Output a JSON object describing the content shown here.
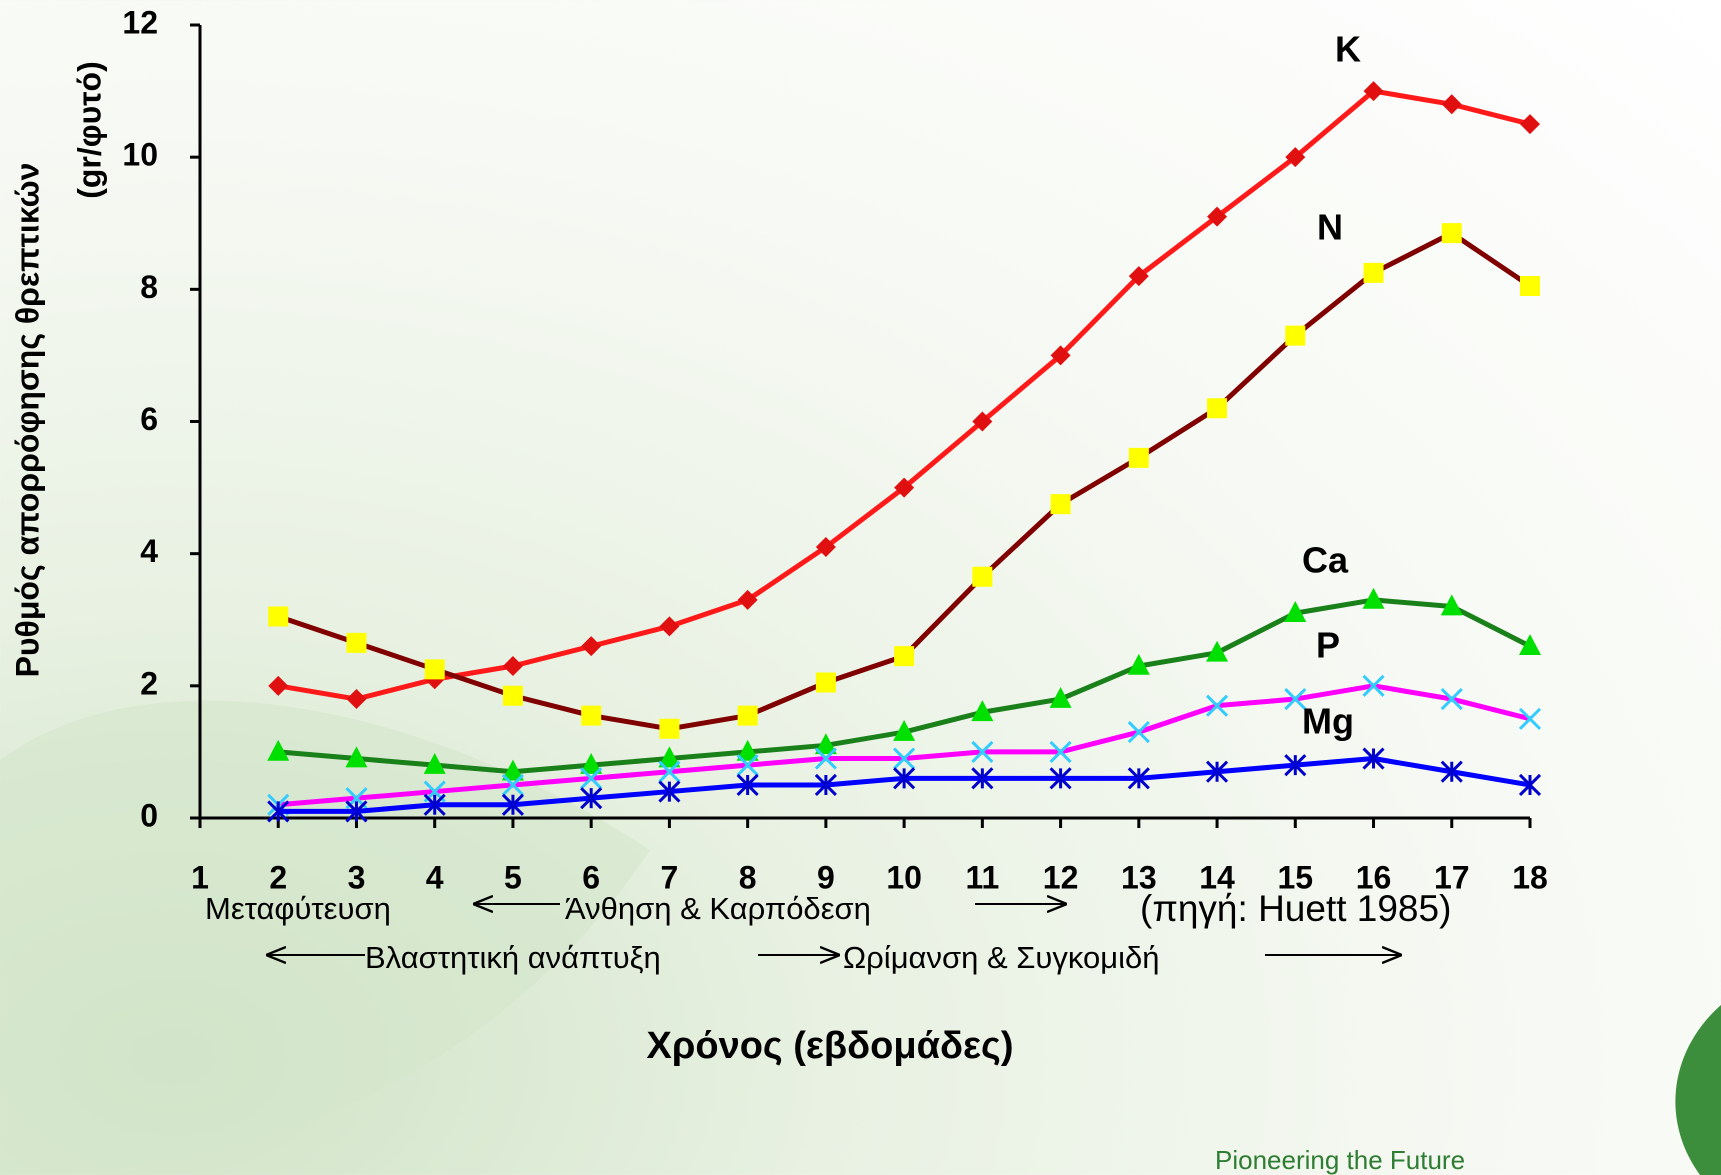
{
  "chart_data": {
    "type": "line",
    "ylabel": [
      "Ρυθμός απορρόφησης θρεπτικών",
      "(gr/φυτό)"
    ],
    "xlabel": "Χρόνος (εβδομάδες)",
    "x": [
      2,
      3,
      4,
      5,
      6,
      7,
      8,
      9,
      10,
      11,
      12,
      13,
      14,
      15,
      16,
      17,
      18
    ],
    "xlim": [
      1,
      18
    ],
    "xticks": [
      1,
      2,
      3,
      4,
      5,
      6,
      7,
      8,
      9,
      10,
      11,
      12,
      13,
      14,
      15,
      16,
      17,
      18
    ],
    "ylim": [
      0,
      12
    ],
    "yticks": [
      0,
      2,
      4,
      6,
      8,
      10,
      12
    ],
    "series": [
      {
        "name": "K",
        "color": "#ff1a1a",
        "marker": "diamond",
        "marker_color": "#e01010",
        "values": [
          2.0,
          1.8,
          2.1,
          2.3,
          2.6,
          2.9,
          3.3,
          4.1,
          5.0,
          6.0,
          7.0,
          8.2,
          9.1,
          10.0,
          11.0,
          10.8,
          10.5
        ]
      },
      {
        "name": "N",
        "color": "#800000",
        "marker": "square",
        "marker_color": "#ffff00",
        "values": [
          3.05,
          2.65,
          2.25,
          1.85,
          1.55,
          1.35,
          1.55,
          2.05,
          2.45,
          3.65,
          4.75,
          5.45,
          6.2,
          7.3,
          8.25,
          8.85,
          8.05
        ]
      },
      {
        "name": "Ca",
        "color": "#1a801a",
        "marker": "triangle",
        "marker_color": "#00e000",
        "values": [
          1.0,
          0.9,
          0.8,
          0.7,
          0.8,
          0.9,
          1.0,
          1.1,
          1.3,
          1.6,
          1.8,
          2.3,
          2.5,
          3.1,
          3.3,
          3.2,
          2.6
        ]
      },
      {
        "name": "P",
        "color": "#ff00ff",
        "marker": "x",
        "marker_color": "#33ccff",
        "values": [
          0.2,
          0.3,
          0.4,
          0.5,
          0.6,
          0.7,
          0.8,
          0.9,
          0.9,
          1.0,
          1.0,
          1.3,
          1.7,
          1.8,
          2.0,
          1.8,
          1.5
        ]
      },
      {
        "name": "Mg",
        "color": "#0000ff",
        "marker": "asterisk",
        "marker_color": "#0000cc",
        "values": [
          0.1,
          0.1,
          0.2,
          0.2,
          0.3,
          0.4,
          0.5,
          0.5,
          0.6,
          0.6,
          0.6,
          0.6,
          0.7,
          0.8,
          0.9,
          0.7,
          0.5
        ]
      }
    ],
    "annotations": [
      "Μεταφύτευση",
      "Άνθηση & Καρπόδεση",
      "(πηγή: Huett 1985)",
      "Βλαστητική ανάπτυξη",
      "Ωρίμανση & Συγκομιδή"
    ]
  },
  "logo_text": "Pioneering the Future"
}
